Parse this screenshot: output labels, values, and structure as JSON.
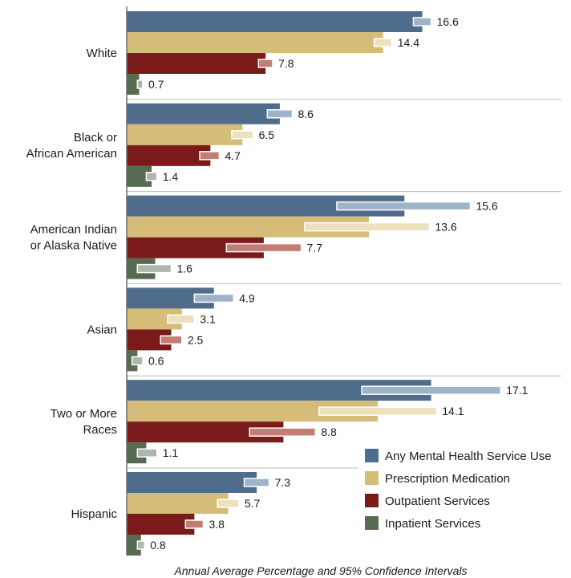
{
  "chart_data": {
    "type": "bar",
    "orientation": "horizontal",
    "xlabel": "Annual Average Percentage and 95% Confidence Intervals",
    "categories": [
      [
        "White"
      ],
      [
        "Black or",
        "African American"
      ],
      [
        "American Indian",
        "or Alaska Native"
      ],
      [
        "Asian"
      ],
      [
        "Two or More",
        "Races"
      ],
      [
        "Hispanic"
      ]
    ],
    "series": [
      {
        "name": "Any Mental Health Service Use",
        "color": "#4f6d8a",
        "ci_color": "#9fb3c8",
        "values": [
          16.6,
          8.6,
          15.6,
          4.9,
          17.1,
          7.3
        ],
        "ci": [
          [
            16.1,
            17.1
          ],
          [
            7.9,
            9.3
          ],
          [
            11.8,
            19.3
          ],
          [
            3.8,
            6.0
          ],
          [
            13.2,
            21.0
          ],
          [
            6.6,
            8.0
          ]
        ]
      },
      {
        "name": "Prescription Medication",
        "color": "#d5bc78",
        "ci_color": "#ece0bd",
        "values": [
          14.4,
          6.5,
          13.6,
          3.1,
          14.1,
          5.7
        ],
        "ci": [
          [
            13.9,
            14.9
          ],
          [
            5.9,
            7.1
          ],
          [
            10.0,
            17.0
          ],
          [
            2.3,
            3.8
          ],
          [
            10.8,
            17.4
          ],
          [
            5.1,
            6.3
          ]
        ]
      },
      {
        "name": "Outpatient Services",
        "color": "#7a1a1a",
        "ci_color": "#c27e74",
        "values": [
          7.8,
          4.7,
          7.7,
          2.5,
          8.8,
          3.8
        ],
        "ci": [
          [
            7.4,
            8.2
          ],
          [
            4.1,
            5.2
          ],
          [
            5.6,
            9.8
          ],
          [
            1.9,
            3.1
          ],
          [
            6.9,
            10.6
          ],
          [
            3.3,
            4.3
          ]
        ]
      },
      {
        "name": "Inpatient Services",
        "color": "#566b4f",
        "ci_color": "#aeb5ab",
        "values": [
          0.7,
          1.4,
          1.6,
          0.6,
          1.1,
          0.8
        ],
        "ci": [
          [
            0.6,
            0.9
          ],
          [
            1.1,
            1.7
          ],
          [
            0.6,
            2.5
          ],
          [
            0.3,
            0.9
          ],
          [
            0.6,
            1.7
          ],
          [
            0.6,
            1.0
          ]
        ]
      }
    ],
    "xlim": [
      0,
      21.4
    ],
    "grid": false,
    "legend_position": "bottom-right"
  }
}
